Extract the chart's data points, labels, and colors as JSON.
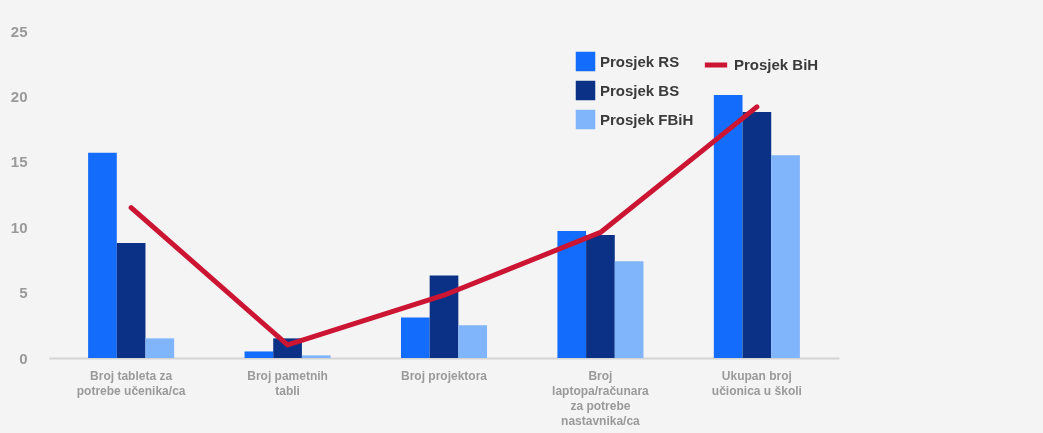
{
  "chart_data": {
    "type": "bar",
    "categories": [
      "Broj tableta za potrebe učenika/ca",
      "Broj pametnih tabli",
      "Broj projektora",
      "Broj laptopa/računara za potrebe nastavnika/ca",
      "Ukupan broj učionica u školi"
    ],
    "series": [
      {
        "name": "Prosjek RS",
        "color": "#136cfb",
        "values": [
          15.7,
          0.5,
          3.1,
          9.7,
          20.1
        ]
      },
      {
        "name": "Prosjek BS",
        "color": "#0a3186",
        "values": [
          8.8,
          1.5,
          6.3,
          9.4,
          18.8
        ]
      },
      {
        "name": "Prosjek FBiH",
        "color": "#80b4fb",
        "values": [
          1.5,
          0.2,
          2.5,
          7.4,
          15.5
        ]
      },
      {
        "name": "Prosjek BiH",
        "type": "line",
        "color": "#cc1433",
        "values": [
          11.5,
          1.0,
          4.8,
          9.6,
          19.2
        ]
      }
    ],
    "ylim": [
      0,
      25
    ],
    "yticks": [
      0,
      5,
      10,
      15,
      20,
      25
    ],
    "grid": false,
    "legend": "top right",
    "marker": "none",
    "line_style": "solid"
  }
}
